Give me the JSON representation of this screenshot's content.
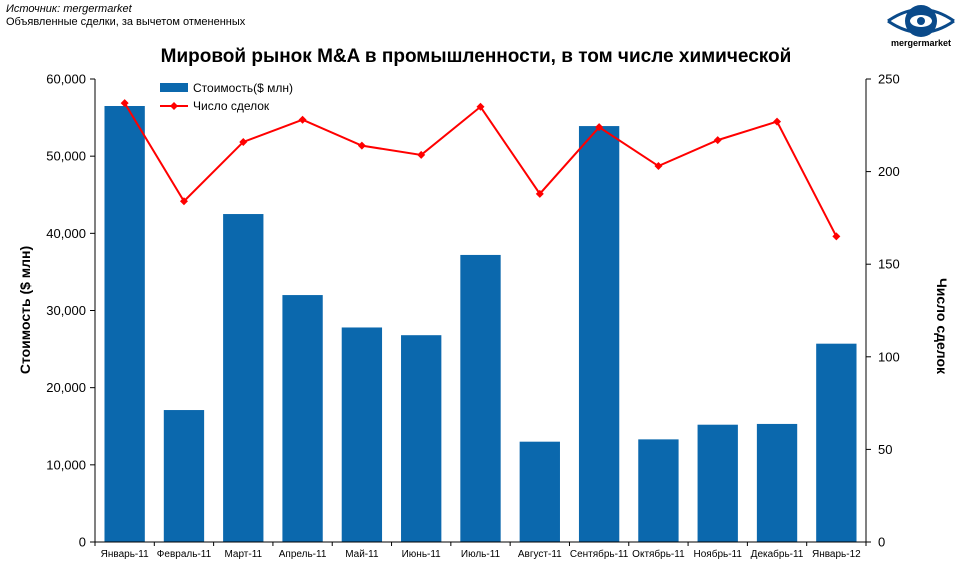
{
  "header": {
    "source_line": "Источник: mergermarket",
    "note_line": "Объявленные сделки, за вычетом отмененных",
    "logo_text": "mergermarket",
    "logo_color": "#0a4a8a"
  },
  "chart_data": {
    "type": "bar",
    "title": "Мировой рынок M&A в промышленности, в том числе химической",
    "categories": [
      "Январь-11",
      "Февраль-11",
      "Март-11",
      "Апрель-11",
      "Май-11",
      "Июнь-11",
      "Июль-11",
      "Август-11",
      "Сентябрь-11",
      "Октябрь-11",
      "Ноябрь-11",
      "Декабрь-11",
      "Январь-12"
    ],
    "ylabel": "Стоимость ($ млн)",
    "y2label": "Число сделок",
    "ylim": [
      0,
      60000
    ],
    "y2lim": [
      0,
      250
    ],
    "yticks": [
      "0",
      "10,000",
      "20,000",
      "30,000",
      "40,000",
      "50,000",
      "60,000"
    ],
    "y2ticks": [
      "0",
      "50",
      "100",
      "150",
      "200",
      "250"
    ],
    "legend_position": "top-left",
    "series": [
      {
        "name": "Стоимость($ млн)",
        "kind": "bar",
        "axis": "left",
        "color": "#0b68ad",
        "values": [
          56500,
          17100,
          42500,
          32000,
          27800,
          26800,
          37200,
          13000,
          53900,
          13300,
          15200,
          15300,
          25700
        ]
      },
      {
        "name": "Число сделок",
        "kind": "line",
        "axis": "right",
        "color": "#ff0000",
        "values": [
          237,
          184,
          216,
          228,
          214,
          209,
          235,
          188,
          224,
          203,
          217,
          227,
          165
        ]
      }
    ]
  }
}
